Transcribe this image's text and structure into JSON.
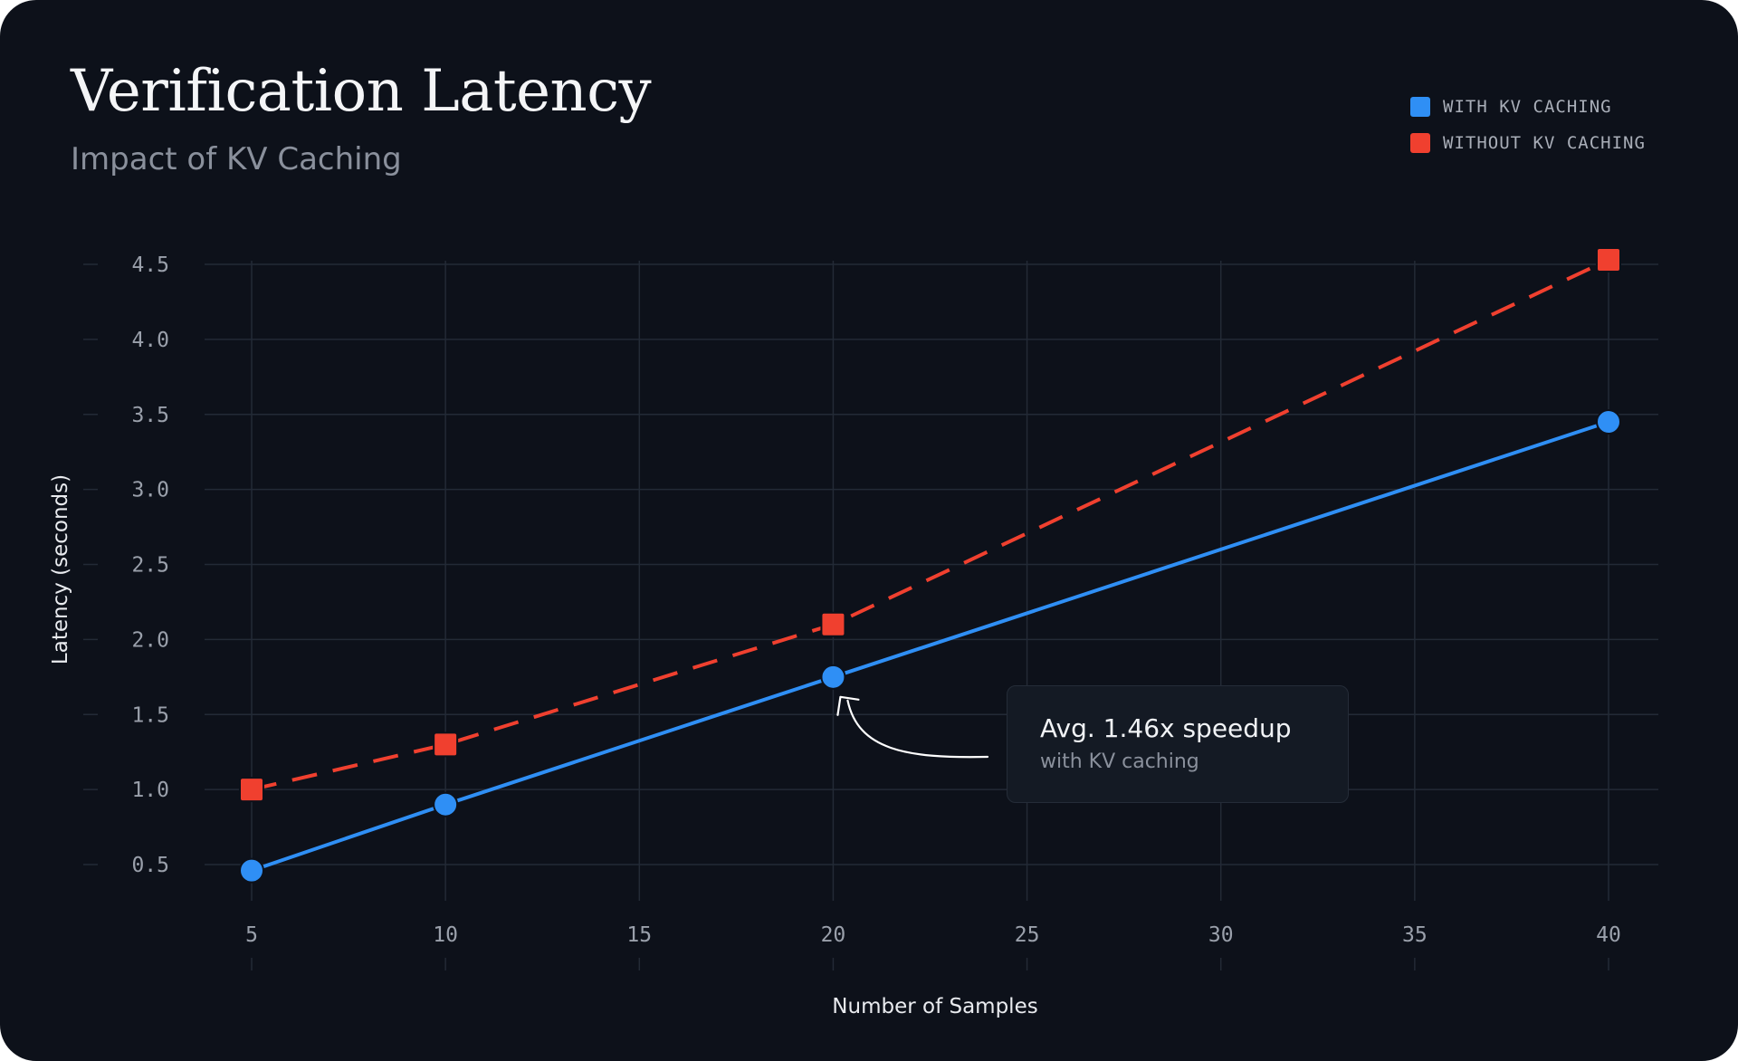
{
  "chart_data": {
    "type": "line",
    "title": "Verification Latency",
    "subtitle": "Impact of KV Caching",
    "xlabel": "Number of Samples",
    "ylabel": "Latency (seconds)",
    "x_ticks": [
      5,
      10,
      15,
      20,
      25,
      30,
      35,
      40
    ],
    "y_ticks": [
      "0.5",
      "1.0",
      "1.5",
      "2.0",
      "2.5",
      "3.0",
      "3.5",
      "4.0",
      "4.5"
    ],
    "xlim": [
      5,
      40
    ],
    "ylim": [
      0.5,
      4.5
    ],
    "grid": true,
    "legend_position": "top-right",
    "x": [
      5,
      10,
      20,
      40
    ],
    "series": [
      {
        "name": "WITH KV CACHING",
        "values": [
          0.46,
          0.9,
          1.75,
          3.45
        ],
        "color": "#2f8ff5",
        "line_style": "solid",
        "marker": "circle"
      },
      {
        "name": "WITHOUT KV CACHING",
        "values": [
          1.0,
          1.3,
          2.1,
          4.53
        ],
        "color": "#f0402f",
        "line_style": "dashed",
        "marker": "square"
      }
    ],
    "annotation": {
      "text": "Avg. 1.46x speedup",
      "subtext": "with KV caching",
      "points_to": {
        "x": 20,
        "y": 1.75
      }
    }
  },
  "colors": {
    "background": "#0d111a",
    "grid": "#232a36",
    "tick_text": "#9aa0ab"
  }
}
